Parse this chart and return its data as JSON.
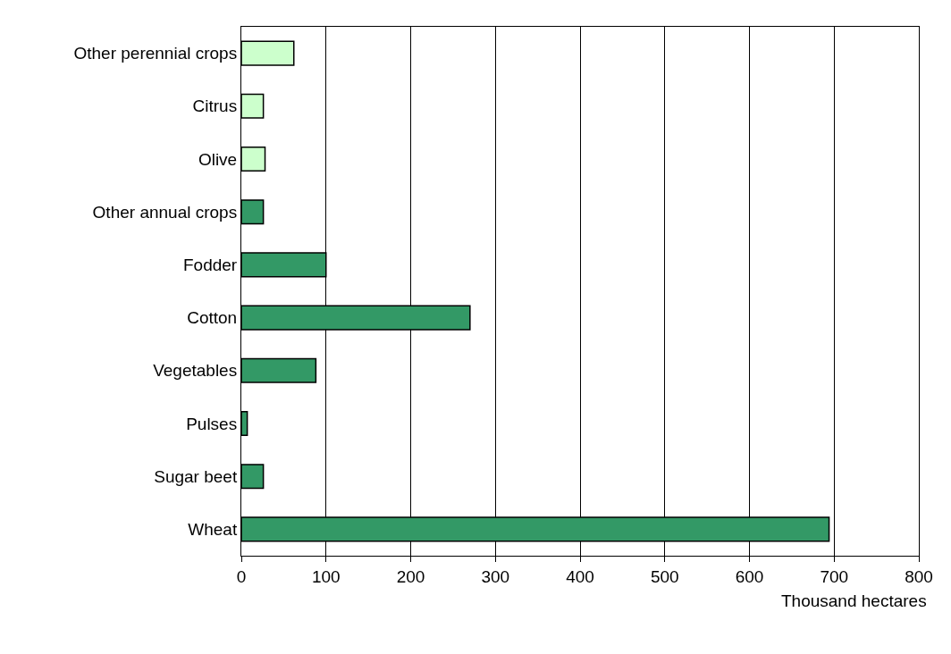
{
  "chart_data": {
    "type": "bar",
    "orientation": "horizontal",
    "xlabel": "Thousand hectares",
    "categories": [
      "Other perennial crops",
      "Citrus",
      "Olive",
      "Other annual crops",
      "Fodder",
      "Cotton",
      "Vegetables",
      "Pulses",
      "Sugar beet",
      "Wheat"
    ],
    "values": [
      62,
      26,
      28,
      26,
      100,
      270,
      88,
      7,
      26,
      694
    ],
    "colors": [
      "#ccffcc",
      "#ccffcc",
      "#ccffcc",
      "#339966",
      "#339966",
      "#339966",
      "#339966",
      "#339966",
      "#339966",
      "#339966"
    ],
    "xlim": [
      0,
      800
    ],
    "xticks": [
      0,
      100,
      200,
      300,
      400,
      500,
      600,
      700,
      800
    ],
    "grid": "x"
  }
}
